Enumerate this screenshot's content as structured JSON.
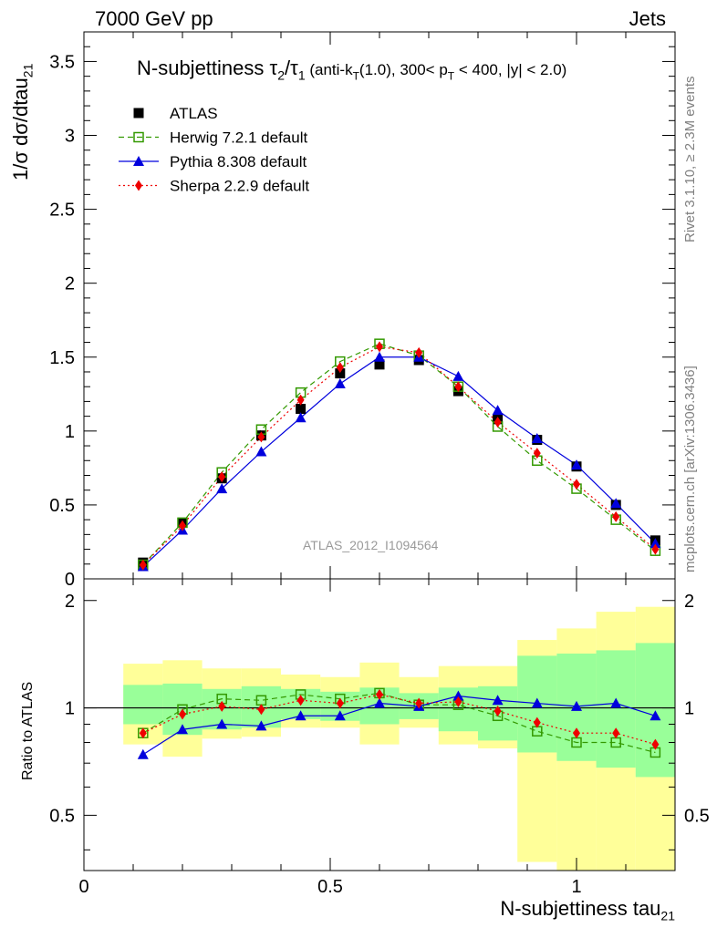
{
  "header": {
    "left": "7000 GeV pp",
    "right": "Jets"
  },
  "side": {
    "rivet": "Rivet 3.1.10, ≥ 2.3M events",
    "mcplots": "mcplots.cern.ch [arXiv:1306.3436]"
  },
  "chart_data": {
    "type": "line",
    "title": {
      "main": "N-subjettiness τ",
      "sub1": "2",
      "slash": "/τ",
      "sub2": "1",
      "cut1": " (anti-k",
      "cut_sub": "T",
      "cut2": "(1.0), 300< p",
      "cut_sub2": "T",
      "cut3": " < 400, |y| < 2.0)"
    },
    "watermark": "ATLAS_2012_I1094564",
    "xlabel": "N-subjettiness tau",
    "xlabel_sub": "21",
    "ylabel_main": "1/σ dσ/dtau",
    "ylabel_sub": "21",
    "ylabel_ratio": "Ratio to ATLAS",
    "xlim": [
      0,
      1.2
    ],
    "ylim_main": [
      0,
      3.7
    ],
    "ylim_ratio": [
      0.35,
      2.3
    ],
    "x_ticks": [
      "0",
      "0.5",
      "1"
    ],
    "y_ticks_main": [
      "0",
      "0.5",
      "1",
      "1.5",
      "2",
      "2.5",
      "3",
      "3.5"
    ],
    "y_ticks_ratio": [
      "0.5",
      "1",
      "2"
    ],
    "x": [
      0.12,
      0.2,
      0.28,
      0.36,
      0.44,
      0.52,
      0.6,
      0.68,
      0.76,
      0.84,
      0.92,
      1.0,
      1.08,
      1.16
    ],
    "bin_edges": [
      0.08,
      0.16,
      0.24,
      0.32,
      0.4,
      0.48,
      0.56,
      0.64,
      0.72,
      0.8,
      0.88,
      0.96,
      1.04,
      1.12,
      1.2
    ],
    "series": [
      {
        "name": "ATLAS",
        "marker": "square",
        "color": "#000000",
        "values": [
          0.11,
          0.38,
          0.68,
          0.97,
          1.15,
          1.39,
          1.45,
          1.48,
          1.27,
          1.08,
          0.94,
          0.76,
          0.5,
          0.26
        ]
      },
      {
        "name": "Herwig 7.2.1 default",
        "marker": "open-square",
        "color": "#339900",
        "dash": "6,4",
        "values": [
          0.095,
          0.38,
          0.72,
          1.01,
          1.26,
          1.47,
          1.59,
          1.51,
          1.3,
          1.03,
          0.8,
          0.61,
          0.4,
          0.19
        ]
      },
      {
        "name": "Pythia 8.308 default",
        "marker": "triangle",
        "color": "#0000dd",
        "values": [
          0.083,
          0.33,
          0.61,
          0.86,
          1.09,
          1.32,
          1.5,
          1.5,
          1.37,
          1.14,
          0.95,
          0.77,
          0.51,
          0.24
        ]
      },
      {
        "name": "Sherpa 2.2.9 default",
        "marker": "diamond",
        "color": "#ee0000",
        "dash": "2,3",
        "values": [
          0.094,
          0.36,
          0.69,
          0.96,
          1.21,
          1.43,
          1.57,
          1.53,
          1.3,
          1.06,
          0.85,
          0.64,
          0.42,
          0.2
        ]
      }
    ],
    "ratio": {
      "Herwig 7.2.1 default": [
        0.85,
        0.99,
        1.06,
        1.05,
        1.09,
        1.06,
        1.1,
        1.02,
        1.02,
        0.95,
        0.86,
        0.8,
        0.8,
        0.75
      ],
      "Pythia 8.308 default": [
        0.74,
        0.87,
        0.9,
        0.89,
        0.95,
        0.95,
        1.03,
        1.01,
        1.08,
        1.05,
        1.03,
        1.01,
        1.03,
        0.95
      ],
      "Sherpa 2.2.9 default": [
        0.85,
        0.96,
        1.01,
        0.99,
        1.05,
        1.03,
        1.09,
        1.03,
        1.04,
        0.98,
        0.91,
        0.85,
        0.85,
        0.79
      ]
    },
    "band_stat": [
      [
        0.9,
        1.16
      ],
      [
        0.84,
        1.17
      ],
      [
        0.87,
        1.13
      ],
      [
        0.88,
        1.15
      ],
      [
        0.93,
        1.13
      ],
      [
        0.92,
        1.11
      ],
      [
        0.9,
        1.14
      ],
      [
        0.93,
        1.1
      ],
      [
        0.86,
        1.14
      ],
      [
        0.81,
        1.15
      ],
      [
        0.75,
        1.4
      ],
      [
        0.71,
        1.42
      ],
      [
        0.68,
        1.45
      ],
      [
        0.64,
        1.52
      ]
    ],
    "band_total": [
      [
        0.79,
        1.33
      ],
      [
        0.73,
        1.36
      ],
      [
        0.82,
        1.29
      ],
      [
        0.83,
        1.29
      ],
      [
        0.88,
        1.24
      ],
      [
        0.88,
        1.22
      ],
      [
        0.79,
        1.34
      ],
      [
        0.88,
        1.22
      ],
      [
        0.79,
        1.31
      ],
      [
        0.77,
        1.31
      ],
      [
        0.37,
        1.55
      ],
      [
        0.34,
        1.67
      ],
      [
        0.3,
        1.86
      ],
      [
        0.28,
        1.92
      ]
    ]
  }
}
